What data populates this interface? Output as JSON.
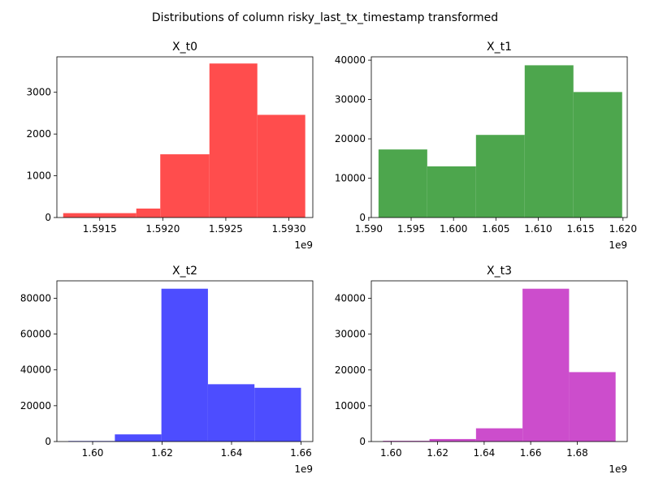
{
  "figure": {
    "title": "Distributions of column risky_last_tx_timestamp transformed"
  },
  "chart_data": [
    {
      "type": "bar",
      "title": "X_t0",
      "color": "#ff4d4d",
      "offset_label": "1e9",
      "bin_edges": [
        1.59121,
        1.59179,
        1.59198,
        1.59237,
        1.59275,
        1.59313
      ],
      "values": [
        105,
        215,
        1515,
        3690,
        2460
      ],
      "xlim": [
        1.59116,
        1.59319
      ],
      "ylim": [
        0,
        3850
      ],
      "x_ticks": [
        {
          "value": 1.5915,
          "label": "1.5915"
        },
        {
          "value": 1.592,
          "label": "1.5920"
        },
        {
          "value": 1.5925,
          "label": "1.5925"
        },
        {
          "value": 1.593,
          "label": "1.5930"
        }
      ],
      "y_ticks": [
        {
          "value": 0,
          "label": "0"
        },
        {
          "value": 1000,
          "label": "1000"
        },
        {
          "value": 2000,
          "label": "2000"
        },
        {
          "value": 3000,
          "label": "3000"
        }
      ]
    },
    {
      "type": "bar",
      "title": "X_t1",
      "color": "#4da64d",
      "offset_label": "1e9",
      "bin_edges": [
        1.59115,
        1.5969,
        1.60265,
        1.6084,
        1.61415,
        1.6199
      ],
      "values": [
        17300,
        13000,
        21000,
        38700,
        31900
      ],
      "xlim": [
        1.5903,
        1.6205
      ],
      "ylim": [
        0,
        40850
      ],
      "x_ticks": [
        {
          "value": 1.59,
          "label": "1.590"
        },
        {
          "value": 1.595,
          "label": "1.595"
        },
        {
          "value": 1.6,
          "label": "1.600"
        },
        {
          "value": 1.605,
          "label": "1.605"
        },
        {
          "value": 1.61,
          "label": "1.610"
        },
        {
          "value": 1.615,
          "label": "1.615"
        },
        {
          "value": 1.62,
          "label": "1.620"
        }
      ],
      "y_ticks": [
        {
          "value": 0,
          "label": "0"
        },
        {
          "value": 10000,
          "label": "10000"
        },
        {
          "value": 20000,
          "label": "20000"
        },
        {
          "value": 30000,
          "label": "30000"
        },
        {
          "value": 40000,
          "label": "40000"
        }
      ]
    },
    {
      "type": "bar",
      "title": "X_t2",
      "color": "#4d4dff",
      "offset_label": "1e9",
      "bin_edges": [
        1.593,
        1.6064,
        1.6198,
        1.6332,
        1.6466,
        1.66
      ],
      "values": [
        300,
        4000,
        85300,
        32000,
        30000
      ],
      "xlim": [
        1.5897,
        1.6634
      ],
      "ylim": [
        0,
        89700
      ],
      "x_ticks": [
        {
          "value": 1.6,
          "label": "1.60"
        },
        {
          "value": 1.62,
          "label": "1.62"
        },
        {
          "value": 1.64,
          "label": "1.64"
        },
        {
          "value": 1.66,
          "label": "1.66"
        }
      ],
      "y_ticks": [
        {
          "value": 0,
          "label": "0"
        },
        {
          "value": 20000,
          "label": "20000"
        },
        {
          "value": 40000,
          "label": "40000"
        },
        {
          "value": 60000,
          "label": "60000"
        },
        {
          "value": 80000,
          "label": "80000"
        }
      ]
    },
    {
      "type": "bar",
      "title": "X_t3",
      "color": "#cc4dcc",
      "offset_label": "1e9",
      "bin_edges": [
        1.5965,
        1.6165,
        1.6365,
        1.6565,
        1.6765,
        1.6965
      ],
      "values": [
        200,
        700,
        3700,
        42700,
        19400
      ],
      "xlim": [
        1.5915,
        1.7015
      ],
      "ylim": [
        0,
        44900
      ],
      "x_ticks": [
        {
          "value": 1.6,
          "label": "1.60"
        },
        {
          "value": 1.62,
          "label": "1.62"
        },
        {
          "value": 1.64,
          "label": "1.64"
        },
        {
          "value": 1.66,
          "label": "1.66"
        },
        {
          "value": 1.68,
          "label": "1.68"
        }
      ],
      "y_ticks": [
        {
          "value": 0,
          "label": "0"
        },
        {
          "value": 10000,
          "label": "10000"
        },
        {
          "value": 20000,
          "label": "20000"
        },
        {
          "value": 30000,
          "label": "30000"
        },
        {
          "value": 40000,
          "label": "40000"
        }
      ]
    }
  ]
}
